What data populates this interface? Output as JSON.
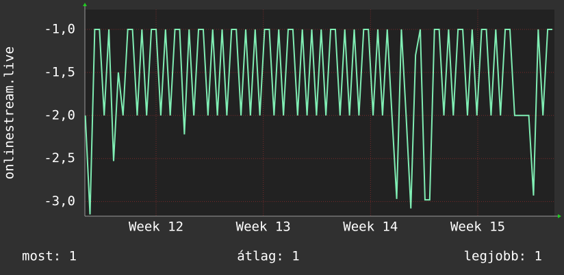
{
  "chart_data": {
    "type": "line",
    "ylabel": "onlinestream.live",
    "x": [
      11.34,
      11.384,
      11.428,
      11.472,
      11.516,
      11.56,
      11.604,
      11.648,
      11.692,
      11.736,
      11.78,
      11.824,
      11.868,
      11.912,
      11.956,
      12,
      12.044,
      12.088,
      12.132,
      12.176,
      12.22,
      12.264,
      12.308,
      12.352,
      12.396,
      12.44,
      12.484,
      12.528,
      12.572,
      12.616,
      12.66,
      12.704,
      12.748,
      12.792,
      12.836,
      12.88,
      12.924,
      12.968,
      13.012,
      13.056,
      13.1,
      13.144,
      13.188,
      13.232,
      13.276,
      13.32,
      13.364,
      13.408,
      13.452,
      13.496,
      13.54,
      13.584,
      13.628,
      13.672,
      13.716,
      13.76,
      13.804,
      13.848,
      13.892,
      13.936,
      13.98,
      14.024,
      14.068,
      14.112,
      14.156,
      14.2,
      14.244,
      14.288,
      14.332,
      14.376,
      14.42,
      14.464,
      14.508,
      14.552,
      14.596,
      14.64,
      14.684,
      14.728,
      14.772,
      14.816,
      14.86,
      14.904,
      14.948,
      14.992,
      15.036,
      15.08,
      15.124,
      15.168,
      15.212,
      15.256,
      15.3,
      15.344,
      15.388,
      15.432,
      15.476,
      15.52,
      15.564,
      15.608,
      15.652,
      15.696
    ],
    "series": [
      {
        "color": "#80eeb4",
        "values": [
          -2,
          -3.15,
          -1,
          -1,
          -2,
          -1,
          -2.53,
          -1.5,
          -2,
          -1,
          -1,
          -2,
          -1,
          -2,
          -1,
          -1,
          -2,
          -1,
          -2,
          -1,
          -1,
          -2.22,
          -1,
          -2,
          -1,
          -1,
          -2,
          -1,
          -2,
          -1,
          -2,
          -1,
          -1,
          -2,
          -1,
          -2,
          -1,
          -2,
          -1,
          -1,
          -2,
          -1,
          -2,
          -1,
          -1,
          -2,
          -1,
          -2,
          -1,
          -2,
          -1,
          -2,
          -1,
          -1,
          -2,
          -1,
          -2,
          -1,
          -2,
          -1,
          -1,
          -2,
          -1,
          -2,
          -1,
          -2,
          -2.97,
          -1,
          -2,
          -3.08,
          -1.3,
          -1,
          -2.98,
          -2.98,
          -1,
          -1,
          -2,
          -1,
          -2,
          -1,
          -1,
          -2,
          -1,
          -2,
          -1,
          -1,
          -2,
          -1,
          -2,
          -1,
          -1,
          -2,
          -2,
          -2,
          -2,
          -2.93,
          -1,
          -2,
          -1,
          -1
        ]
      }
    ],
    "xlim": [
      11.336,
      15.715
    ],
    "ylim": [
      -3.17,
      -0.77
    ],
    "xticks": [
      {
        "value": 12,
        "label": "Week 12"
      },
      {
        "value": 13,
        "label": "Week 13"
      },
      {
        "value": 14,
        "label": "Week 14"
      },
      {
        "value": 15,
        "label": "Week 15"
      }
    ],
    "yticks": [
      {
        "value": -1,
        "label": "-1,0"
      },
      {
        "value": -1.5,
        "label": "-1,5"
      },
      {
        "value": -2,
        "label": "-2,0"
      },
      {
        "value": -2.5,
        "label": "-2,5"
      },
      {
        "value": -3,
        "label": "-3,0"
      }
    ],
    "grid": true,
    "footer": [
      "most: 1",
      "átlag: 1",
      "legjobb: 1"
    ]
  }
}
